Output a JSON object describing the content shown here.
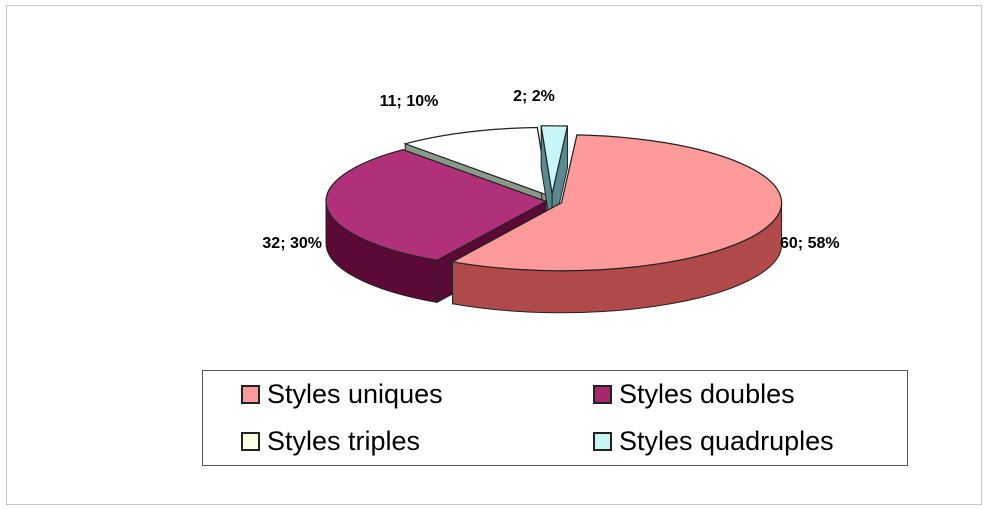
{
  "chart_data": {
    "type": "pie",
    "three_d": true,
    "title": "",
    "slices": [
      {
        "name": "Styles uniques",
        "value": 60,
        "percent": 58,
        "label": "60; 58%",
        "color": "#ff9a9a",
        "side_color": "#b04a4a"
      },
      {
        "name": "Styles doubles",
        "value": 32,
        "percent": 30,
        "label": "32; 30%",
        "color": "#b0307a",
        "side_color": "#5a0a35"
      },
      {
        "name": "Styles triples",
        "value": 11,
        "percent": 10,
        "label": "11; 10%",
        "color": "#ffffff",
        "side_color": "#8a9a8a"
      },
      {
        "name": "Styles quadruples",
        "value": 2,
        "percent": 2,
        "label": "2; 2%",
        "color": "#c8f6f6",
        "side_color": "#5a8a90"
      }
    ],
    "legend_position": "bottom"
  },
  "legend": {
    "items": [
      {
        "label": "Styles uniques",
        "color": "#ff9a9a"
      },
      {
        "label": "Styles doubles",
        "color": "#a8266e"
      },
      {
        "label": "Styles triples",
        "color": "#ffffe8"
      },
      {
        "label": "Styles quadruples",
        "color": "#c8f6f6"
      }
    ]
  }
}
